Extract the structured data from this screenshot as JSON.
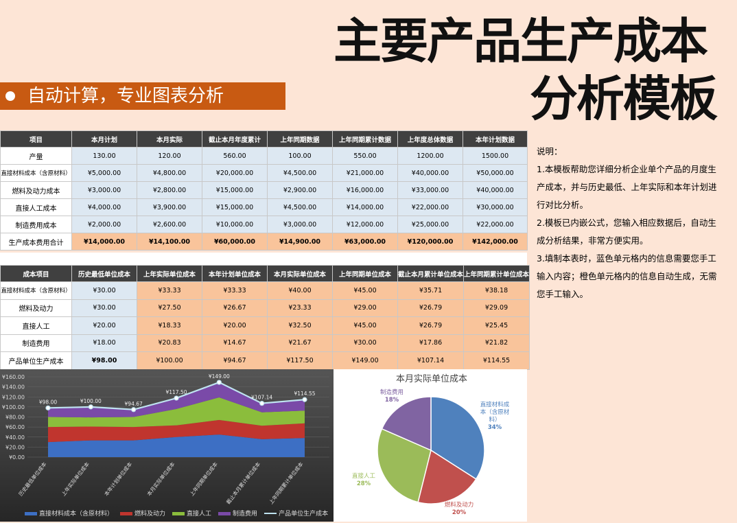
{
  "title": {
    "line1": "主要产品生产成本",
    "line2": "分析模板"
  },
  "banner": {
    "text": "自动计算，专业图表分析"
  },
  "table1": {
    "headers": [
      "项目",
      "本月计划",
      "本月实际",
      "截止本月年度累计",
      "上年同期数据",
      "上年同期累计数据",
      "上年度总体数据",
      "本年计划数据"
    ],
    "rows": [
      {
        "label": "产量",
        "values": [
          "130.00",
          "120.00",
          "560.00",
          "100.00",
          "550.00",
          "1200.00",
          "1500.00"
        ]
      },
      {
        "label": "直接材料成本（含原材料）",
        "values": [
          "¥5,000.00",
          "¥4,800.00",
          "¥20,000.00",
          "¥4,500.00",
          "¥21,000.00",
          "¥40,000.00",
          "¥50,000.00"
        ]
      },
      {
        "label": "燃料及动力成本",
        "values": [
          "¥3,000.00",
          "¥2,800.00",
          "¥15,000.00",
          "¥2,900.00",
          "¥16,000.00",
          "¥33,000.00",
          "¥40,000.00"
        ]
      },
      {
        "label": "直接人工成本",
        "values": [
          "¥4,000.00",
          "¥3,900.00",
          "¥15,000.00",
          "¥4,500.00",
          "¥14,000.00",
          "¥22,000.00",
          "¥30,000.00"
        ]
      },
      {
        "label": "制造费用成本",
        "values": [
          "¥2,000.00",
          "¥2,600.00",
          "¥10,000.00",
          "¥3,000.00",
          "¥12,000.00",
          "¥25,000.00",
          "¥22,000.00"
        ]
      },
      {
        "label": "生产成本费用合计",
        "values": [
          "¥14,000.00",
          "¥14,100.00",
          "¥60,000.00",
          "¥14,900.00",
          "¥63,000.00",
          "¥120,000.00",
          "¥142,000.00"
        ]
      }
    ]
  },
  "table2": {
    "headers": [
      "成本项目",
      "历史最低单位成本",
      "上年实际单位成本",
      "本年计划单位成本",
      "本月实际单位成本",
      "上年同期单位成本",
      "截止本月累计单位成本",
      "上年同期累计单位成本"
    ],
    "rows": [
      {
        "label": "直接材料成本（含原材料）",
        "values": [
          "¥30.00",
          "¥33.33",
          "¥33.33",
          "¥40.00",
          "¥45.00",
          "¥35.71",
          "¥38.18"
        ]
      },
      {
        "label": "燃料及动力",
        "values": [
          "¥30.00",
          "¥27.50",
          "¥26.67",
          "¥23.33",
          "¥29.00",
          "¥26.79",
          "¥29.09"
        ]
      },
      {
        "label": "直接人工",
        "values": [
          "¥20.00",
          "¥18.33",
          "¥20.00",
          "¥32.50",
          "¥45.00",
          "¥26.79",
          "¥25.45"
        ]
      },
      {
        "label": "制造费用",
        "values": [
          "¥18.00",
          "¥20.83",
          "¥14.67",
          "¥21.67",
          "¥30.00",
          "¥17.86",
          "¥21.82"
        ]
      },
      {
        "label": "产品单位生产成本",
        "values": [
          "¥98.00",
          "¥100.00",
          "¥94.67",
          "¥117.50",
          "¥149.00",
          "¥107.14",
          "¥114.55"
        ]
      }
    ]
  },
  "notes": {
    "heading": "说明：",
    "p1": "1.本模板帮助您详细分析企业单个产品的月度生产成本，并与历史最低、上年实际和本年计划进行对比分析。",
    "p2": "2.模板已内嵌公式，您输入相应数据后，自动生成分析结果，非常方便实用。",
    "p3": "3.填制本表时，蓝色单元格内的信息需要您手工输入内容；橙色单元格内的信息自动生成，无需您手工输入。"
  },
  "chart_data": [
    {
      "type": "area",
      "categories": [
        "历史最低单位成本",
        "上年实际单位成本",
        "本年计划单位成本",
        "本月实际单位成本",
        "上年同期单位成本",
        "截止本月累计单位成本",
        "上年同期累计单位成本"
      ],
      "series": [
        {
          "name": "直接材料成本（含原材料）",
          "values": [
            30,
            33.33,
            33.33,
            40,
            45,
            35.71,
            38.18
          ],
          "color": "#3d6fc4"
        },
        {
          "name": "燃料及动力",
          "values": [
            30,
            27.5,
            26.67,
            23.33,
            29,
            26.79,
            29.09
          ],
          "color": "#c0352e"
        },
        {
          "name": "直接人工",
          "values": [
            20,
            18.33,
            20,
            32.5,
            45,
            26.79,
            25.45
          ],
          "color": "#8bbd3c"
        },
        {
          "name": "制造费用",
          "values": [
            18,
            20.83,
            14.67,
            21.67,
            30,
            17.86,
            21.82
          ],
          "color": "#7a4aa8"
        },
        {
          "name": "产品单位生产成本",
          "values": [
            98,
            100,
            94.67,
            117.5,
            149,
            107.14,
            114.55
          ],
          "color": "#bfe3f0"
        }
      ],
      "data_labels": [
        "¥98.00",
        "¥100.00",
        "¥94.67",
        "¥117.50",
        "¥149.00",
        "¥107.14",
        "¥114.55"
      ],
      "yticks": [
        "¥0.00",
        "¥20.00",
        "¥40.00",
        "¥60.00",
        "¥80.00",
        "¥100.00",
        "¥120.00",
        "¥140.00",
        "¥160.00"
      ],
      "ylim": [
        0,
        160
      ]
    },
    {
      "type": "pie",
      "title": "本月实际单位成本",
      "slices": [
        {
          "name": "直接材料成本（含原材料）",
          "label_lines": [
            "直接材料成",
            "本（含原材",
            "料）"
          ],
          "value": 40,
          "pct": "34%",
          "color": "#4f81bd"
        },
        {
          "name": "燃料及动力",
          "label_lines": [
            "燃料及动力"
          ],
          "value": 23.33,
          "pct": "20%",
          "color": "#c0504d"
        },
        {
          "name": "直接人工",
          "label_lines": [
            "直接人工"
          ],
          "value": 32.5,
          "pct": "28%",
          "color": "#9bbb59"
        },
        {
          "name": "制造费用",
          "label_lines": [
            "制造费用"
          ],
          "value": 21.67,
          "pct": "18%",
          "color": "#8064a2"
        }
      ]
    }
  ]
}
